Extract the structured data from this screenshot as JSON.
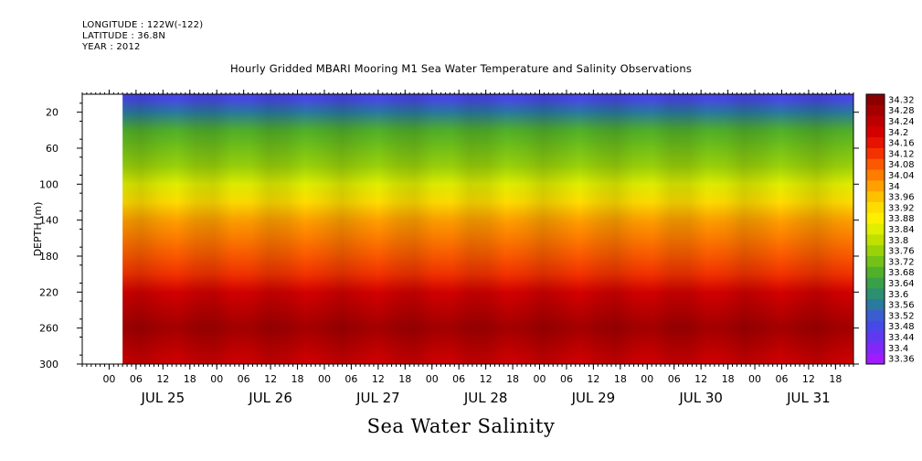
{
  "header": {
    "longitude": "LONGITUDE : 122W(-122)",
    "latitude": "LATITUDE : 36.8N",
    "year": "YEAR : 2012"
  },
  "title": "Hourly Gridded MBARI Mooring M1 Sea Water Temperature and Salinity Observations",
  "bottom_title": "Sea Water Salinity",
  "chart_data": {
    "type": "heatmap",
    "title": "Hourly Gridded MBARI Mooring M1 Sea Water Temperature and Salinity Observations",
    "variable": "Sea Water Salinity",
    "ylabel": "DEPTH (m)",
    "ylim": [
      300,
      0
    ],
    "y_ticks": [
      20,
      60,
      100,
      140,
      180,
      220,
      260,
      300
    ],
    "x_hour_ticks": [
      "00",
      "06",
      "12",
      "18",
      "00",
      "06",
      "12",
      "18",
      "00",
      "06",
      "12",
      "18",
      "00",
      "06",
      "12",
      "18",
      "00",
      "06",
      "12",
      "18",
      "00",
      "06",
      "12",
      "18",
      "00",
      "06",
      "12",
      "18"
    ],
    "x_day_labels": [
      "JUL 25",
      "JUL 26",
      "JUL 27",
      "JUL 28",
      "JUL 29",
      "JUL 30",
      "JUL 31"
    ],
    "x_range": [
      "JUL 24 18:00",
      "JUL 31 22:00"
    ],
    "data_start": "JUL 25 03:00",
    "colorbar": {
      "levels": [
        "34.32",
        "34.28",
        "34.24",
        "34.2",
        "34.16",
        "34.12",
        "34.08",
        "34.04",
        "34",
        "33.96",
        "33.92",
        "33.88",
        "33.84",
        "33.8",
        "33.76",
        "33.72",
        "33.68",
        "33.64",
        "33.6",
        "33.56",
        "33.52",
        "33.48",
        "33.44",
        "33.4",
        "33.36"
      ],
      "colors": [
        "#8a0000",
        "#a40000",
        "#bc0000",
        "#d40000",
        "#e81200",
        "#f43200",
        "#fb5800",
        "#ff7c00",
        "#ffa000",
        "#ffc000",
        "#ffdc00",
        "#fcf000",
        "#e0ee00",
        "#c0e000",
        "#9ad20a",
        "#74c218",
        "#50b02a",
        "#3aa048",
        "#2c9070",
        "#2a7aa0",
        "#3a5ed0",
        "#4848e8",
        "#6038f0",
        "#8028f8",
        "#9e1cff"
      ]
    },
    "depth_profile": [
      {
        "depth": 5,
        "salinity": 33.5
      },
      {
        "depth": 20,
        "salinity": 33.58
      },
      {
        "depth": 40,
        "salinity": 33.7
      },
      {
        "depth": 60,
        "salinity": 33.74
      },
      {
        "depth": 80,
        "salinity": 33.78
      },
      {
        "depth": 100,
        "salinity": 33.84
      },
      {
        "depth": 120,
        "salinity": 33.92
      },
      {
        "depth": 140,
        "salinity": 34.02
      },
      {
        "depth": 160,
        "salinity": 34.06
      },
      {
        "depth": 180,
        "salinity": 34.08
      },
      {
        "depth": 200,
        "salinity": 34.12
      },
      {
        "depth": 220,
        "salinity": 34.2
      },
      {
        "depth": 240,
        "salinity": 34.26
      },
      {
        "depth": 260,
        "salinity": 34.28
      },
      {
        "depth": 280,
        "salinity": 34.24
      },
      {
        "depth": 300,
        "salinity": 34.2
      }
    ],
    "grid": false,
    "legend": "right colorbar"
  }
}
